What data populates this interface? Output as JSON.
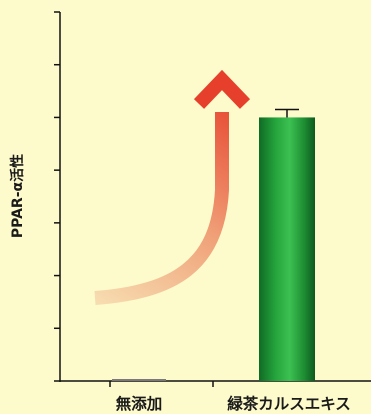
{
  "chart_data": {
    "type": "bar",
    "ylabel": "PPAR-α活性",
    "categories": [
      "無添加",
      "緑茶カルスエキス"
    ],
    "values": [
      0.1,
      5.0
    ],
    "error": [
      0,
      0.15
    ],
    "ylim": [
      0,
      7
    ],
    "y_ticks": [
      0,
      1,
      2,
      3,
      4,
      5,
      6,
      7
    ],
    "y_tick_labels_shown": false,
    "grid": false,
    "bar_colors": [
      "#7a7a7a",
      "#1f9a36"
    ],
    "bar_style": "vertical-gradient green",
    "annotation": "upward curved arrow (pale orange to red) indicating increase",
    "arrow_colors": [
      "#f5cf9c",
      "#e6402c"
    ],
    "background": "#fdfbcb"
  }
}
